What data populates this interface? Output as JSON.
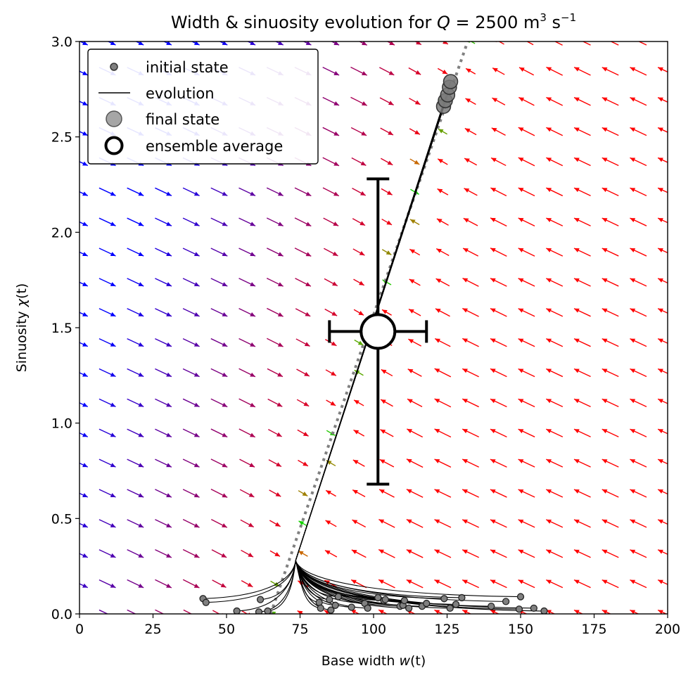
{
  "chart_data": {
    "type": "vector-field-with-trajectories",
    "title": "Width & sinuosity evolution for Q = 2500 m³ s⁻¹",
    "title_parts": {
      "pre": "Width & sinuosity evolution for ",
      "var": "Q",
      "eq": " = 2500 m",
      "sup1": "3",
      "mid": " s",
      "sup2": "−1"
    },
    "xlabel": "Base width w(t)",
    "xlabel_parts": {
      "pre": "Base width ",
      "var": "w",
      "post": "(t)"
    },
    "ylabel": "Sinuosity χ(t)",
    "ylabel_parts": {
      "pre": "Sinuosity ",
      "var": "χ",
      "post": "(t)"
    },
    "xlim": [
      0,
      200
    ],
    "ylim": [
      0,
      3.0
    ],
    "xticks": [
      0,
      25,
      50,
      75,
      100,
      125,
      150,
      175,
      200
    ],
    "xtick_labels": [
      "0",
      "25",
      "50",
      "75",
      "100",
      "125",
      "150",
      "175",
      "200"
    ],
    "yticks": [
      0.0,
      0.5,
      1.0,
      1.5,
      2.0,
      2.5,
      3.0
    ],
    "ytick_labels": [
      "0.0",
      "0.5",
      "1.0",
      "1.5",
      "2.0",
      "2.5",
      "3.0"
    ],
    "grid": false,
    "legend": {
      "placement": "top-left",
      "entries": [
        {
          "label": "initial state",
          "marker": "small-gray-dot"
        },
        {
          "label": "evolution",
          "marker": "black-line"
        },
        {
          "label": "final state",
          "marker": "large-gray-dot"
        },
        {
          "label": "ensemble average",
          "marker": "white-circle"
        }
      ]
    },
    "equilibrium_line": {
      "from": [
        65,
        0.0
      ],
      "to": [
        132,
        3.0
      ],
      "style": "dotted",
      "color": "#808080"
    },
    "vector_field": {
      "x_start": 0,
      "x_step": 9.5,
      "y_start": 0.0,
      "y_step": 0.158,
      "color_left": "#0000ff",
      "color_right": "#ff0000",
      "color_near_line": "#00dd00"
    },
    "initial_states": [
      [
        42,
        0.08
      ],
      [
        43,
        0.06
      ],
      [
        53.5,
        0.015
      ],
      [
        61,
        0.01
      ],
      [
        61.5,
        0.075
      ],
      [
        64,
        0.015
      ],
      [
        81.5,
        0.06
      ],
      [
        82,
        0.03
      ],
      [
        85,
        0.075
      ],
      [
        85.5,
        0.02
      ],
      [
        87,
        0.045
      ],
      [
        88,
        0.09
      ],
      [
        92.5,
        0.035
      ],
      [
        97,
        0.055
      ],
      [
        98,
        0.03
      ],
      [
        101.5,
        0.085
      ],
      [
        103.5,
        0.07
      ],
      [
        104,
        0.075
      ],
      [
        109,
        0.04
      ],
      [
        110,
        0.045
      ],
      [
        110.5,
        0.07
      ],
      [
        112,
        0.03
      ],
      [
        116.5,
        0.04
      ],
      [
        118,
        0.055
      ],
      [
        124,
        0.08
      ],
      [
        126,
        0.03
      ],
      [
        128,
        0.05
      ],
      [
        130,
        0.085
      ],
      [
        140,
        0.04
      ],
      [
        145,
        0.065
      ],
      [
        149.5,
        0.025
      ],
      [
        150,
        0.09
      ],
      [
        154.5,
        0.03
      ],
      [
        158,
        0.015
      ]
    ],
    "final_states": [
      [
        123.8,
        2.66
      ],
      [
        124.4,
        2.69
      ],
      [
        125.2,
        2.72
      ],
      [
        125.8,
        2.76
      ],
      [
        126.2,
        2.79
      ]
    ],
    "ensemble_average": {
      "x": 101.5,
      "y": 1.48,
      "x_err": 16.5,
      "y_err": 0.8
    }
  }
}
